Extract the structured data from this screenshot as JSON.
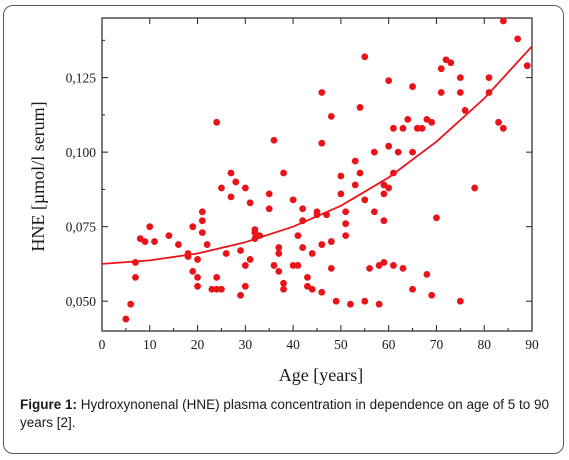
{
  "caption": {
    "label": "Figure 1:",
    "text": " Hydroxynonenal (HNE) plasma concentration in dependence on age of 5 to 90 years [2]."
  },
  "chart_data": {
    "type": "scatter",
    "title": "",
    "xlabel": "Age [years]",
    "ylabel": "HNE [µmol/l serum]",
    "xlim": [
      0,
      90
    ],
    "ylim": [
      0.04,
      0.145
    ],
    "x_ticks": [
      0,
      10,
      20,
      30,
      40,
      50,
      60,
      70,
      80,
      90
    ],
    "y_ticks": [
      0.05,
      0.075,
      0.1,
      0.125
    ],
    "y_tick_labels": [
      "0,050",
      "0,075",
      "0,100",
      "0,125"
    ],
    "grid": false,
    "marker_color": "#e8141a",
    "series": [
      {
        "points": [
          [
            5,
            0.044
          ],
          [
            6,
            0.049
          ],
          [
            7,
            0.058
          ],
          [
            7,
            0.063
          ],
          [
            8,
            0.071
          ],
          [
            9,
            0.07
          ],
          [
            10,
            0.075
          ],
          [
            11,
            0.07
          ],
          [
            14,
            0.072
          ],
          [
            16,
            0.069
          ],
          [
            18,
            0.065
          ],
          [
            18,
            0.066
          ],
          [
            19,
            0.06
          ],
          [
            19,
            0.075
          ],
          [
            20,
            0.064
          ],
          [
            20,
            0.055
          ],
          [
            20,
            0.058
          ],
          [
            21,
            0.077
          ],
          [
            21,
            0.08
          ],
          [
            21,
            0.073
          ],
          [
            22,
            0.069
          ],
          [
            23,
            0.054
          ],
          [
            24,
            0.11
          ],
          [
            24,
            0.054
          ],
          [
            24,
            0.058
          ],
          [
            25,
            0.054
          ],
          [
            25,
            0.088
          ],
          [
            26,
            0.066
          ],
          [
            27,
            0.093
          ],
          [
            27,
            0.085
          ],
          [
            28,
            0.09
          ],
          [
            29,
            0.067
          ],
          [
            29,
            0.052
          ],
          [
            30,
            0.055
          ],
          [
            30,
            0.062
          ],
          [
            30,
            0.088
          ],
          [
            31,
            0.083
          ],
          [
            31,
            0.064
          ],
          [
            32,
            0.073
          ],
          [
            32,
            0.071
          ],
          [
            32,
            0.074
          ],
          [
            33,
            0.072
          ],
          [
            35,
            0.086
          ],
          [
            35,
            0.081
          ],
          [
            36,
            0.104
          ],
          [
            36,
            0.062
          ],
          [
            37,
            0.068
          ],
          [
            37,
            0.066
          ],
          [
            37,
            0.06
          ],
          [
            38,
            0.056
          ],
          [
            38,
            0.054
          ],
          [
            38,
            0.093
          ],
          [
            40,
            0.062
          ],
          [
            40,
            0.084
          ],
          [
            41,
            0.062
          ],
          [
            41,
            0.072
          ],
          [
            42,
            0.081
          ],
          [
            42,
            0.077
          ],
          [
            42,
            0.068
          ],
          [
            43,
            0.058
          ],
          [
            43,
            0.055
          ],
          [
            44,
            0.066
          ],
          [
            44,
            0.054
          ],
          [
            45,
            0.08
          ],
          [
            45,
            0.079
          ],
          [
            46,
            0.12
          ],
          [
            46,
            0.103
          ],
          [
            46,
            0.069
          ],
          [
            46,
            0.053
          ],
          [
            47,
            0.079
          ],
          [
            48,
            0.112
          ],
          [
            48,
            0.061
          ],
          [
            48,
            0.07
          ],
          [
            49,
            0.05
          ],
          [
            50,
            0.092
          ],
          [
            50,
            0.086
          ],
          [
            51,
            0.08
          ],
          [
            51,
            0.076
          ],
          [
            51,
            0.072
          ],
          [
            52,
            0.049
          ],
          [
            53,
            0.089
          ],
          [
            53,
            0.097
          ],
          [
            54,
            0.115
          ],
          [
            54,
            0.093
          ],
          [
            55,
            0.132
          ],
          [
            55,
            0.084
          ],
          [
            55,
            0.05
          ],
          [
            56,
            0.061
          ],
          [
            57,
            0.08
          ],
          [
            57,
            0.1
          ],
          [
            58,
            0.062
          ],
          [
            58,
            0.049
          ],
          [
            59,
            0.063
          ],
          [
            59,
            0.077
          ],
          [
            59,
            0.086
          ],
          [
            59,
            0.089
          ],
          [
            60,
            0.124
          ],
          [
            60,
            0.102
          ],
          [
            60,
            0.088
          ],
          [
            61,
            0.108
          ],
          [
            61,
            0.093
          ],
          [
            61,
            0.062
          ],
          [
            62,
            0.1
          ],
          [
            63,
            0.061
          ],
          [
            63,
            0.108
          ],
          [
            64,
            0.111
          ],
          [
            65,
            0.122
          ],
          [
            65,
            0.1
          ],
          [
            65,
            0.054
          ],
          [
            66,
            0.108
          ],
          [
            67,
            0.108
          ],
          [
            68,
            0.111
          ],
          [
            68,
            0.059
          ],
          [
            69,
            0.11
          ],
          [
            69,
            0.052
          ],
          [
            70,
            0.078
          ],
          [
            71,
            0.128
          ],
          [
            71,
            0.12
          ],
          [
            72,
            0.131
          ],
          [
            73,
            0.13
          ],
          [
            75,
            0.125
          ],
          [
            75,
            0.12
          ],
          [
            75,
            0.05
          ],
          [
            76,
            0.114
          ],
          [
            78,
            0.088
          ],
          [
            81,
            0.125
          ],
          [
            81,
            0.12
          ],
          [
            83,
            0.11
          ],
          [
            84,
            0.108
          ],
          [
            84,
            0.144
          ],
          [
            87,
            0.138
          ],
          [
            89,
            0.129
          ]
        ]
      }
    ],
    "trend": {
      "type": "exponential",
      "x": [
        0,
        10,
        20,
        30,
        40,
        50,
        60,
        70,
        80,
        90
      ],
      "y": [
        0.0625,
        0.0637,
        0.066,
        0.0698,
        0.075,
        0.082,
        0.0915,
        0.1035,
        0.118,
        0.1355
      ]
    }
  }
}
